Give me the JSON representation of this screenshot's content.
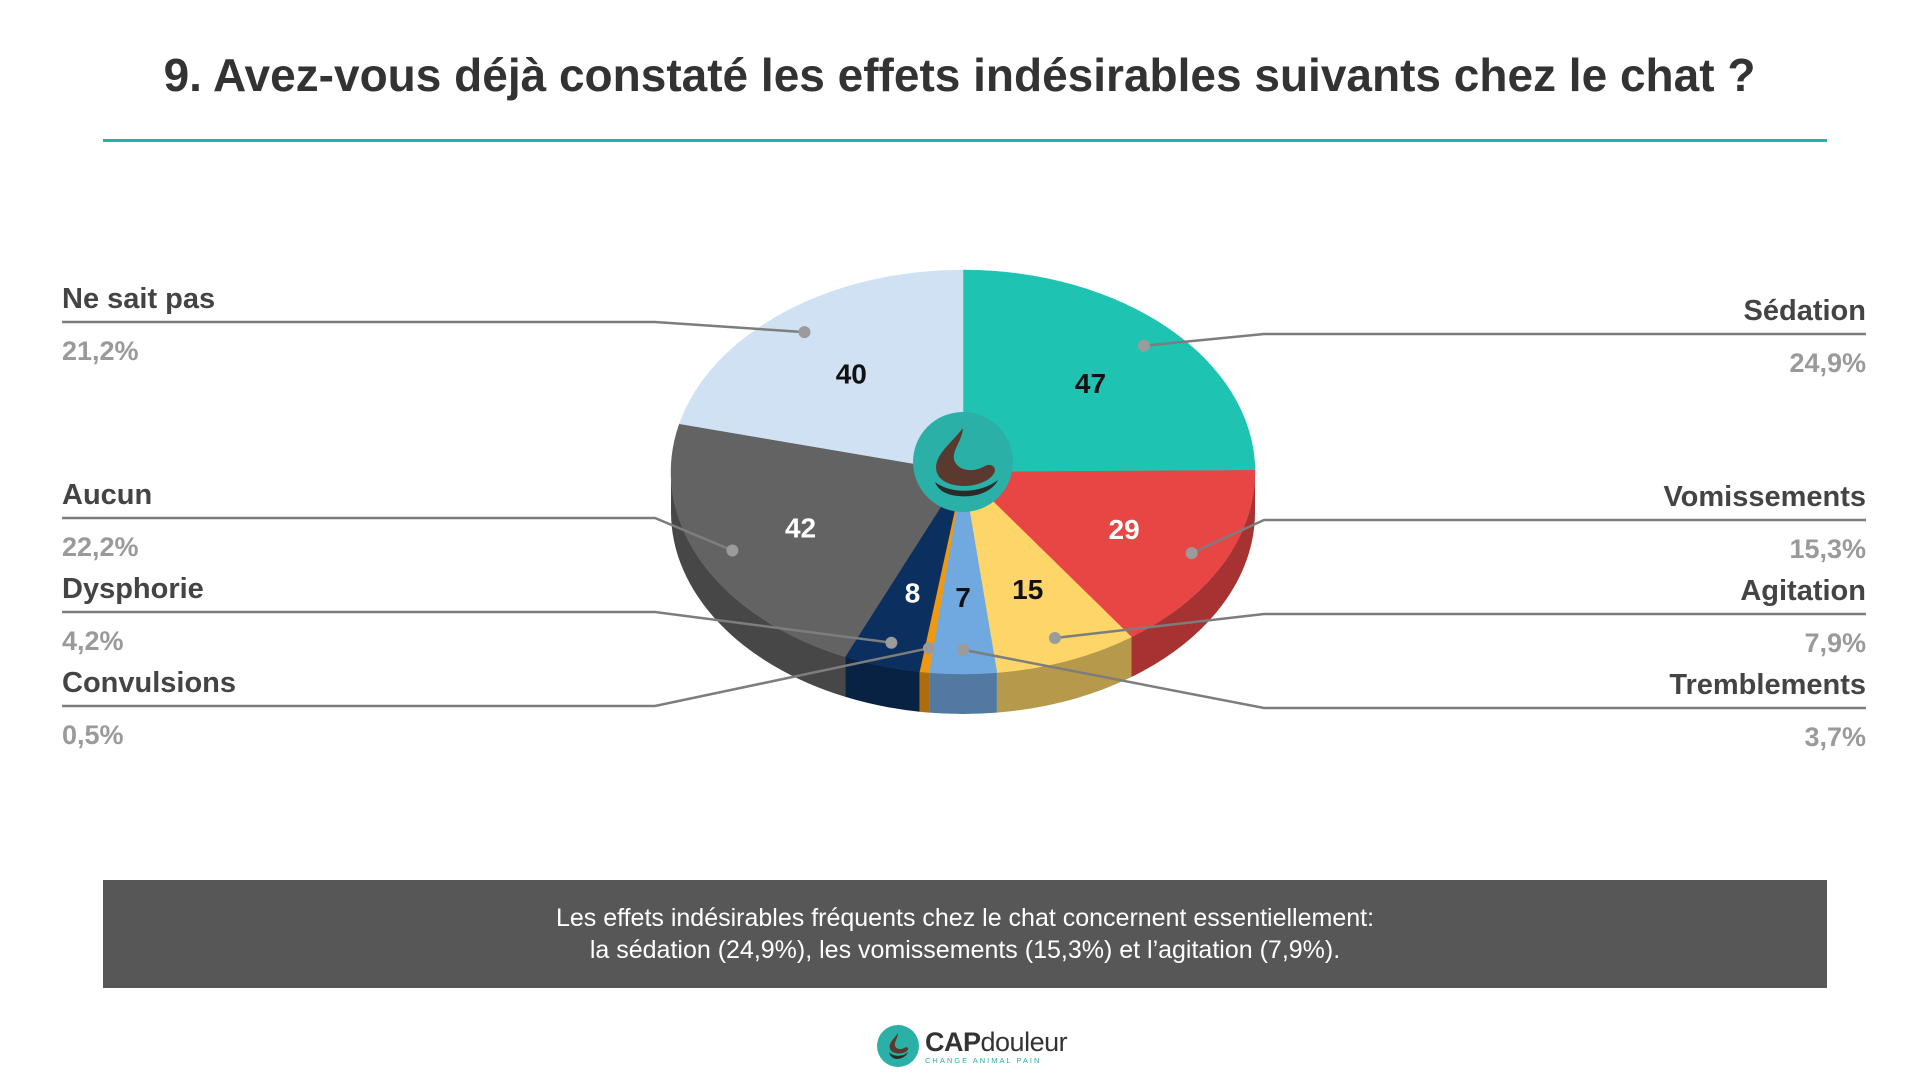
{
  "page": {
    "title": "9. Avez-vous déjà constaté les effets indésirables suivants chez le chat ?",
    "summary_line1": "Les effets indésirables fréquents chez le chat concernent essentiellement:",
    "summary_line2": "la sédation (24,9%), les vomissements (15,3%) et l’agitation (7,9%).",
    "logo_cap": "CAP",
    "logo_douleur": "douleur",
    "logo_tagline": "CHANGE ANIMAL PAIN",
    "center_logo_icon": "capdouleur-drop-icon"
  },
  "colors": {
    "accent": "#1fb7a8",
    "label_name": "#444444",
    "label_pct": "#9a9a9a",
    "summary_bg": "#575757"
  },
  "chart_data": {
    "type": "pie",
    "style": "3d",
    "title": "9. Avez-vous déjà constaté les effets indésirables suivants chez le chat ?",
    "slices": [
      {
        "name": "Sédation",
        "value": 47,
        "percent": "24,9%",
        "color": "#1ec3b1",
        "side": "right"
      },
      {
        "name": "Vomissements",
        "value": 29,
        "percent": "15,3%",
        "color": "#e84545",
        "side": "right"
      },
      {
        "name": "Agitation",
        "value": 15,
        "percent": "7,9%",
        "color": "#fdd568",
        "side": "right"
      },
      {
        "name": "Tremblements",
        "value": 7,
        "percent": "3,7%",
        "color": "#70a8e0",
        "side": "right"
      },
      {
        "name": "Convulsions",
        "value": 1,
        "percent": "0,5%",
        "color": "#f0980f",
        "side": "left"
      },
      {
        "name": "Dysphorie",
        "value": 8,
        "percent": "4,2%",
        "color": "#0b2f5e",
        "side": "left"
      },
      {
        "name": "Aucun",
        "value": 42,
        "percent": "22,2%",
        "color": "#636363",
        "side": "left"
      },
      {
        "name": "Ne sait pas",
        "value": 40,
        "percent": "21,2%",
        "color": "#cfe1f3",
        "side": "left"
      }
    ]
  }
}
